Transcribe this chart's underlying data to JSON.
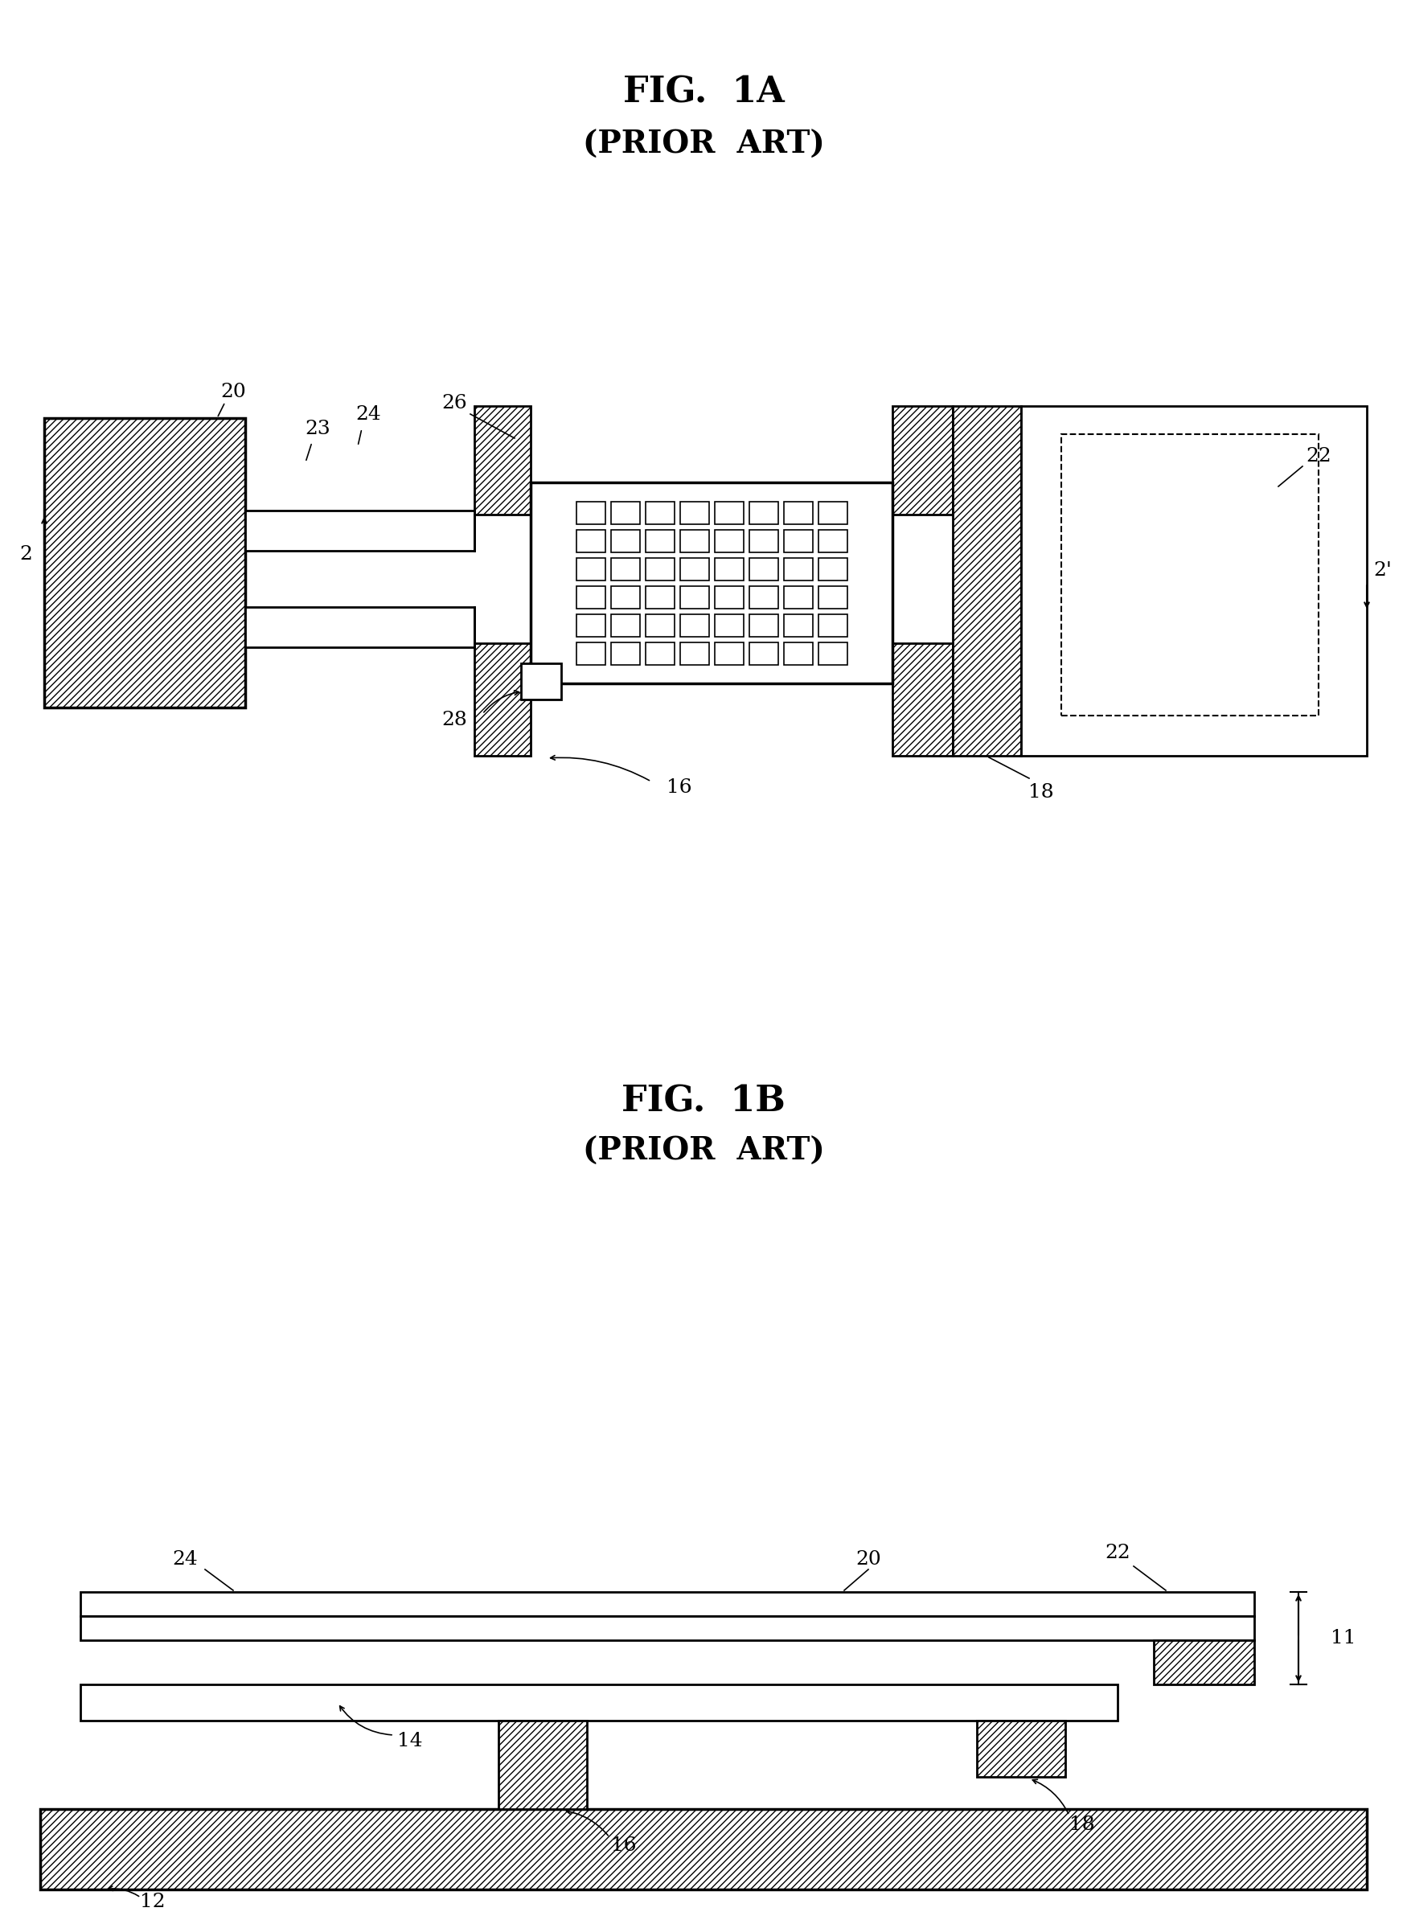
{
  "fig_title_1a": "FIG.  1A",
  "fig_subtitle_1a": "(PRIOR  ART)",
  "fig_title_1b": "FIG.  1B",
  "fig_subtitle_1b": "(PRIOR  ART)",
  "bg_color": "#ffffff",
  "line_color": "#000000",
  "title_fontsize": 32,
  "subtitle_fontsize": 28,
  "label_fontsize": 18
}
